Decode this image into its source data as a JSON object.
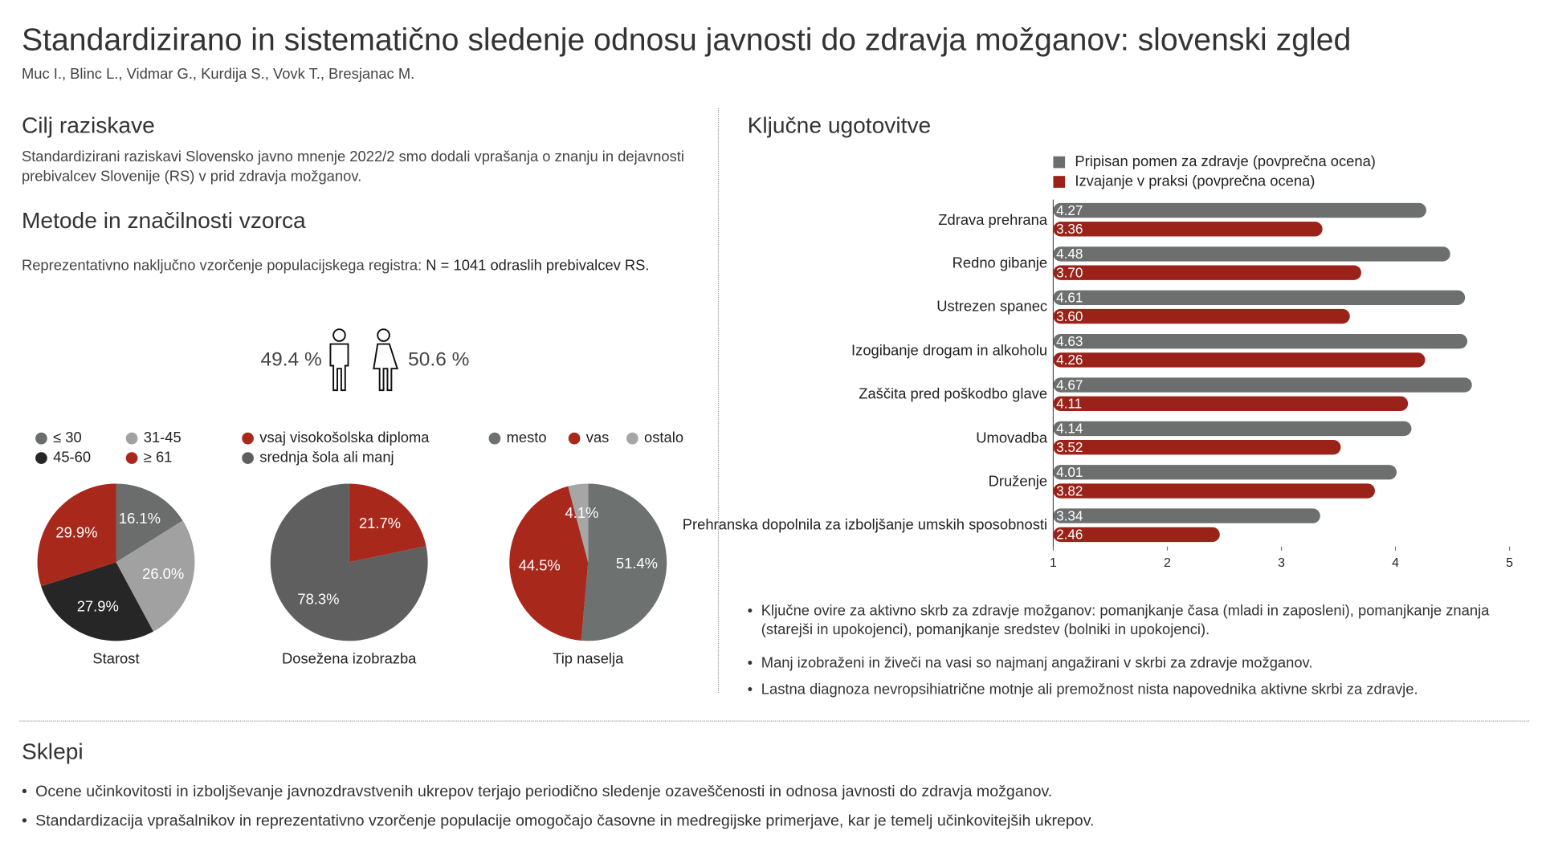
{
  "header": {
    "title": "Standardizirano in sistematično sledenje odnosu javnosti do zdravja možganov: slovenski zgled",
    "authors": "Muc I., Blinc L., Vidmar G., Kurdija S., Vovk T., Bresjanac M."
  },
  "aim": {
    "heading": "Cilj raziskave",
    "text": "Standardizirani raziskavi Slovensko javno mnenje 2022/2 smo dodali vprašanja o znanju in dejavnosti prebivalcev Slovenije (RS) v prid zdravja možganov."
  },
  "methods": {
    "heading": "Metode in značilnosti vzorca",
    "text": "Reprezentativno naključno vzorčenje populacijskega registra:",
    "text_bold": "N = 1041 odraslih prebivalcev RS.",
    "male": "49.4 %",
    "female": "50.6 %"
  },
  "findings": {
    "heading": "Ključne ugotovitve",
    "bullets": [
      "Ključne ovire za aktivno skrb za zdravje možganov: pomanjkanje časa (mladi in zaposleni), pomanjkanje znanja (starejši in upokojenci), pomanjkanje sredstev (bolniki in upokojenci).",
      "Manj izobraženi in živeči na vasi so najmanj angažirani v skrbi za zdravje možganov.",
      "Lastna diagnoza nevropsihiatrične motnje ali premožnost nista napovednika aktivne skrbi za zdravje."
    ]
  },
  "conclusions": {
    "heading": "Sklepi",
    "bullets": [
      "Ocene učinkovitosti in izboljševanje javnozdravstvenih ukrepov terjajo periodično sledenje ozaveščenosti in odnosa javnosti do zdravja možganov.",
      "Standardizacija vprašalnikov in reprezentativno vzorčenje populacije omogočajo časovne in medregijske primerjave, kar je temelj učinkovitejših ukrepov."
    ]
  },
  "chart_data": [
    {
      "type": "pie",
      "title": "Starost",
      "categories": [
        "≤ 30",
        "31-45",
        "45-60",
        "≥ 61"
      ],
      "colors": [
        "#6b6c6c",
        "#a1a1a1",
        "#262626",
        "#a8291c"
      ],
      "values": [
        16.1,
        26.0,
        27.9,
        29.9
      ],
      "value_labels": [
        "16.1%",
        "26.0%",
        "27.9%",
        "29.9%"
      ]
    },
    {
      "type": "pie",
      "title": "Dosežena izobrazba",
      "categories": [
        "vsaj visokošolska diploma",
        "srednja šola ali manj"
      ],
      "colors": [
        "#a8291c",
        "#5f5f5f"
      ],
      "values": [
        21.7,
        78.3
      ],
      "value_labels": [
        "21.7%",
        "78.3%"
      ]
    },
    {
      "type": "pie",
      "title": "Tip naselja",
      "categories": [
        "mesto",
        "vas",
        "ostalo"
      ],
      "colors": [
        "#6d716f",
        "#a8291c",
        "#a6a6a6"
      ],
      "values": [
        51.4,
        44.5,
        4.1
      ],
      "value_labels": [
        "51.4%",
        "44.5%",
        "4.1%"
      ]
    },
    {
      "type": "bar",
      "orientation": "horizontal",
      "categories": [
        "Zdrava prehrana",
        "Redno gibanje",
        "Ustrezen spanec",
        "Izogibanje drogam in alkoholu",
        "Zaščita pred poškodbo glave",
        "Umovadba",
        "Druženje",
        "Prehranska dopolnila za izboljšanje umskih sposobnosti"
      ],
      "series": [
        {
          "name": "Pripisan pomen za zdravje (povprečna ocena)",
          "color": "#6d6f6e",
          "values": [
            4.27,
            4.48,
            4.61,
            4.63,
            4.67,
            4.14,
            4.01,
            3.34
          ],
          "value_labels": [
            "4.27",
            "4.48",
            "4.61",
            "4.63",
            "4.67",
            "4.14",
            "4.01",
            "3.34"
          ]
        },
        {
          "name": "Izvajanje v praksi (povprečna ocena)",
          "color": "#9b2219",
          "values": [
            3.36,
            3.7,
            3.6,
            4.26,
            4.11,
            3.52,
            3.82,
            2.46
          ],
          "value_labels": [
            "3.36",
            "3.70",
            "3.60",
            "4.26",
            "4.11",
            "3.52",
            "3.82",
            "2.46"
          ]
        }
      ],
      "xlim": [
        1,
        5
      ],
      "xticks": [
        1,
        2,
        3,
        4,
        5
      ]
    }
  ]
}
